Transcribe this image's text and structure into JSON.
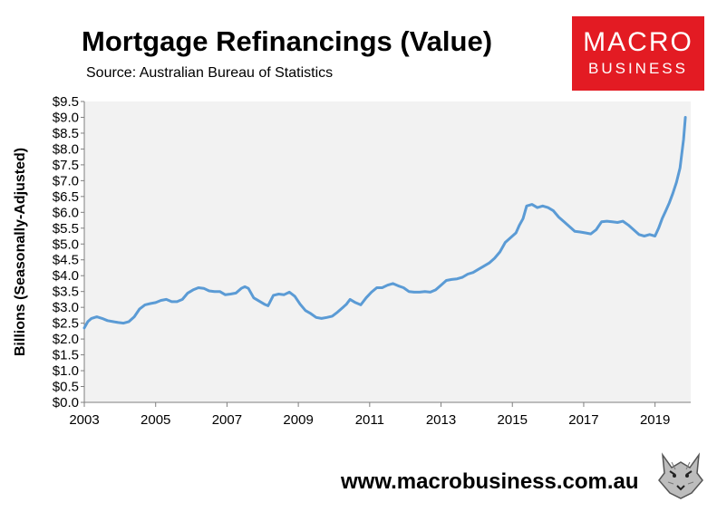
{
  "header": {
    "title": "Mortgage Refinancings (Value)",
    "subtitle": "Source: Australian Bureau of Statistics"
  },
  "logo": {
    "line1": "MACRO",
    "line2": "BUSINESS",
    "color": "#e31b23"
  },
  "footer": {
    "url": "www.macrobusiness.com.au",
    "icon": "wolf-icon"
  },
  "chart_data": {
    "type": "line",
    "title": "Mortgage Refinancings (Value)",
    "ylabel": "Billions (Seasonally-Adjusted)",
    "xlabel": "",
    "xlim": [
      2003,
      2020
    ],
    "ylim": [
      0,
      9.5
    ],
    "x_ticks": [
      "2003",
      "2005",
      "2007",
      "2009",
      "2011",
      "2013",
      "2015",
      "2017",
      "2019"
    ],
    "x_tick_values": [
      2003,
      2005,
      2007,
      2009,
      2011,
      2013,
      2015,
      2017,
      2019
    ],
    "y_ticks": [
      "$0.0",
      "$0.5",
      "$1.0",
      "$1.5",
      "$2.0",
      "$2.5",
      "$3.0",
      "$3.5",
      "$4.0",
      "$4.5",
      "$5.0",
      "$5.5",
      "$6.0",
      "$6.5",
      "$7.0",
      "$7.5",
      "$8.0",
      "$8.5",
      "$9.0",
      "$9.5"
    ],
    "y_tick_values": [
      0,
      0.5,
      1,
      1.5,
      2,
      2.5,
      3,
      3.5,
      4,
      4.5,
      5,
      5.5,
      6,
      6.5,
      7,
      7.5,
      8,
      8.5,
      9,
      9.5
    ],
    "grid": false,
    "line_color": "#5b9bd5",
    "plot_background": "#f2f2f2",
    "series": [
      {
        "x": [
          2003.0,
          2003.1,
          2003.2,
          2003.35,
          2003.5,
          2003.65,
          2003.8,
          2003.95,
          2004.1,
          2004.25,
          2004.4,
          2004.55,
          2004.7,
          2004.85,
          2005.0,
          2005.15,
          2005.3,
          2005.45,
          2005.6,
          2005.75,
          2005.9,
          2006.05,
          2006.2,
          2006.35,
          2006.5,
          2006.65,
          2006.8,
          2006.95,
          2007.1,
          2007.25,
          2007.4,
          2007.5,
          2007.6,
          2007.75,
          2007.9,
          2008.05,
          2008.15,
          2008.3,
          2008.45,
          2008.6,
          2008.75,
          2008.9,
          2009.05,
          2009.2,
          2009.35,
          2009.5,
          2009.65,
          2009.8,
          2009.95,
          2010.1,
          2010.25,
          2010.35,
          2010.45,
          2010.6,
          2010.75,
          2010.9,
          2011.05,
          2011.2,
          2011.35,
          2011.5,
          2011.65,
          2011.8,
          2011.95,
          2012.1,
          2012.25,
          2012.4,
          2012.55,
          2012.7,
          2012.85,
          2013.0,
          2013.15,
          2013.3,
          2013.45,
          2013.6,
          2013.75,
          2013.9,
          2014.05,
          2014.2,
          2014.35,
          2014.5,
          2014.65,
          2014.8,
          2014.95,
          2015.1,
          2015.2,
          2015.3,
          2015.4,
          2015.55,
          2015.7,
          2015.85,
          2016.0,
          2016.15,
          2016.3,
          2016.45,
          2016.6,
          2016.75,
          2016.9,
          2017.05,
          2017.2,
          2017.35,
          2017.5,
          2017.65,
          2017.8,
          2017.95,
          2018.1,
          2018.25,
          2018.4,
          2018.55,
          2018.7,
          2018.85,
          2019.0,
          2019.1,
          2019.2,
          2019.3,
          2019.4,
          2019.5,
          2019.6,
          2019.7,
          2019.8,
          2019.85
        ],
        "y": [
          2.35,
          2.55,
          2.65,
          2.7,
          2.65,
          2.58,
          2.55,
          2.52,
          2.5,
          2.55,
          2.7,
          2.95,
          3.08,
          3.12,
          3.15,
          3.22,
          3.25,
          3.18,
          3.18,
          3.25,
          3.45,
          3.55,
          3.62,
          3.6,
          3.52,
          3.5,
          3.5,
          3.4,
          3.42,
          3.45,
          3.6,
          3.65,
          3.6,
          3.3,
          3.2,
          3.1,
          3.05,
          3.38,
          3.42,
          3.4,
          3.48,
          3.35,
          3.1,
          2.9,
          2.8,
          2.68,
          2.65,
          2.68,
          2.72,
          2.85,
          3.0,
          3.1,
          3.25,
          3.15,
          3.08,
          3.3,
          3.48,
          3.62,
          3.62,
          3.7,
          3.75,
          3.68,
          3.62,
          3.5,
          3.48,
          3.48,
          3.5,
          3.48,
          3.55,
          3.7,
          3.85,
          3.88,
          3.9,
          3.95,
          4.05,
          4.1,
          4.2,
          4.3,
          4.4,
          4.55,
          4.75,
          5.05,
          5.2,
          5.35,
          5.6,
          5.8,
          6.2,
          6.25,
          6.15,
          6.2,
          6.15,
          6.05,
          5.85,
          5.7,
          5.55,
          5.4,
          5.38,
          5.35,
          5.32,
          5.45,
          5.7,
          5.72,
          5.7,
          5.68,
          5.72,
          5.6,
          5.45,
          5.3,
          5.25,
          5.3,
          5.25,
          5.5,
          5.8,
          6.05,
          6.3,
          6.6,
          6.95,
          7.4,
          8.3,
          9.0
        ]
      }
    ]
  }
}
